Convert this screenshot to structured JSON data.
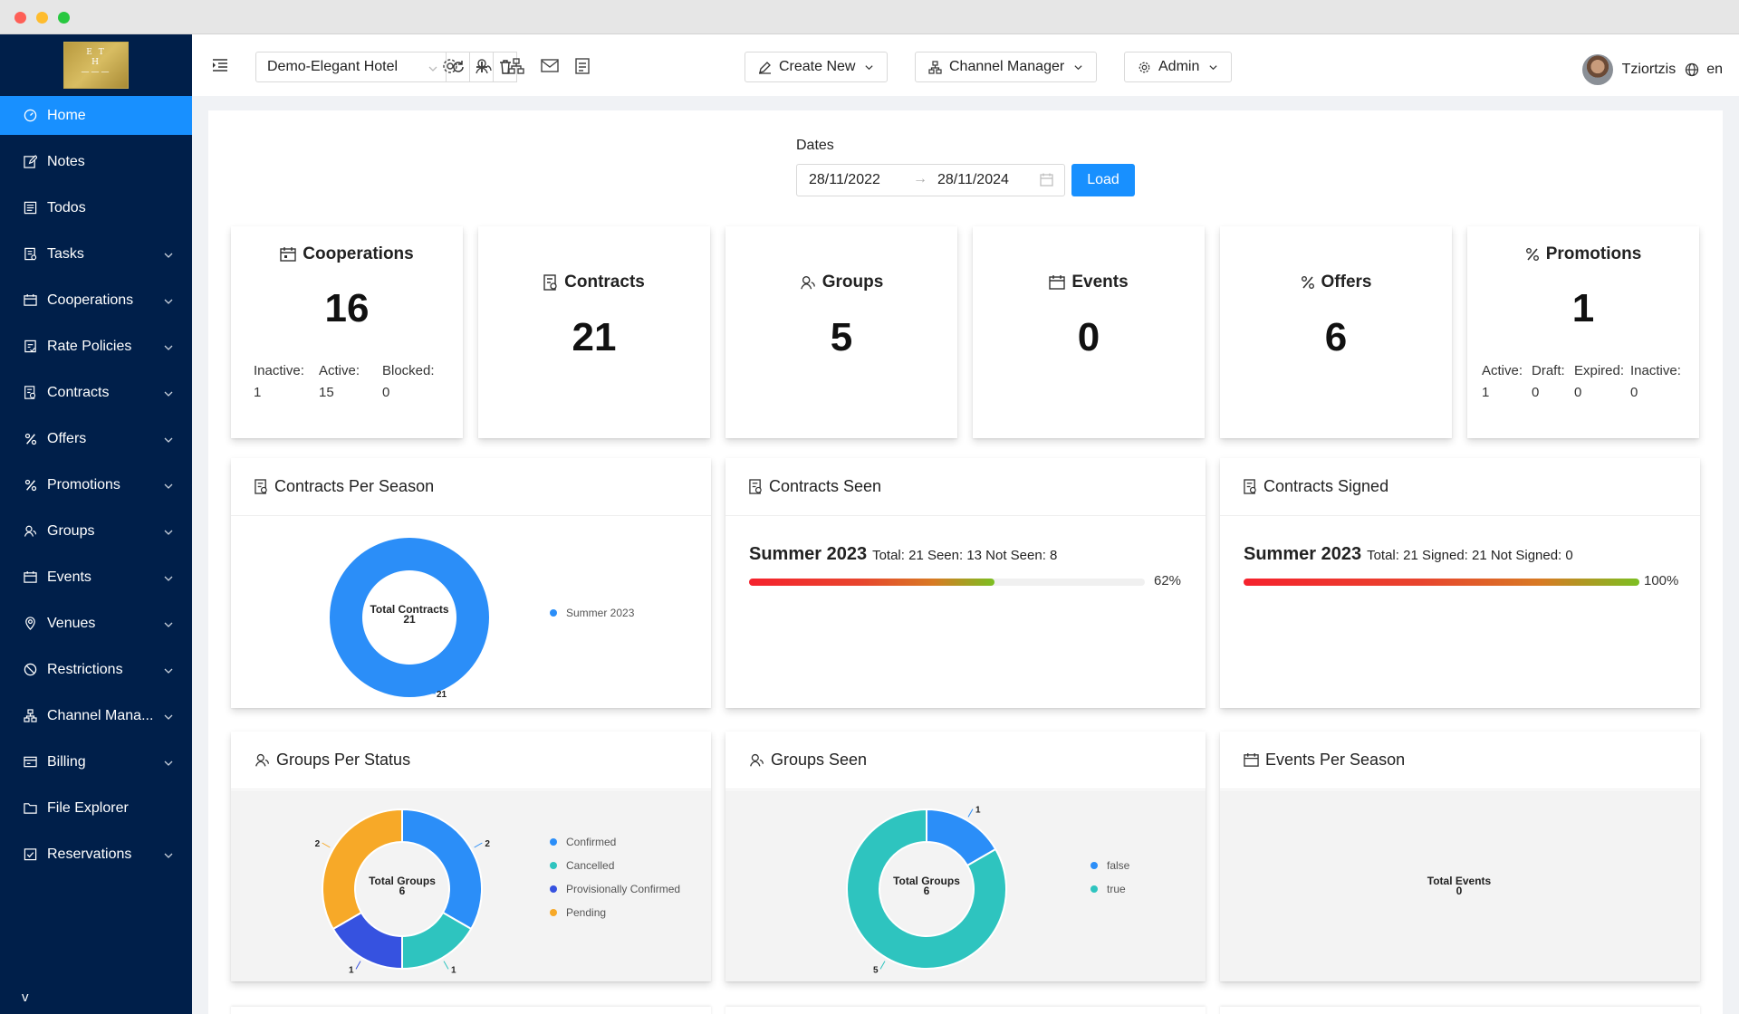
{
  "window": {
    "controls": [
      "close",
      "minimize",
      "maximize"
    ]
  },
  "sidebar": {
    "logo_text": "E T H",
    "items": [
      {
        "label": "Home",
        "icon": "dashboard-icon",
        "active": true,
        "has_children": false
      },
      {
        "label": "Notes",
        "icon": "edit-icon",
        "active": false,
        "has_children": false
      },
      {
        "label": "Todos",
        "icon": "list-icon",
        "active": false,
        "has_children": false
      },
      {
        "label": "Tasks",
        "icon": "task-icon",
        "active": false,
        "has_children": true
      },
      {
        "label": "Cooperations",
        "icon": "calendar-icon",
        "active": false,
        "has_children": true
      },
      {
        "label": "Rate Policies",
        "icon": "rate-icon",
        "active": false,
        "has_children": true
      },
      {
        "label": "Contracts",
        "icon": "contract-icon",
        "active": false,
        "has_children": true
      },
      {
        "label": "Offers",
        "icon": "percent-icon",
        "active": false,
        "has_children": true
      },
      {
        "label": "Promotions",
        "icon": "percent-icon",
        "active": false,
        "has_children": true
      },
      {
        "label": "Groups",
        "icon": "group-icon",
        "active": false,
        "has_children": true
      },
      {
        "label": "Events",
        "icon": "calendar-icon",
        "active": false,
        "has_children": true
      },
      {
        "label": "Venues",
        "icon": "location-icon",
        "active": false,
        "has_children": true
      },
      {
        "label": "Restrictions",
        "icon": "stop-icon",
        "active": false,
        "has_children": true
      },
      {
        "label": "Channel Mana...",
        "icon": "cluster-icon",
        "active": false,
        "has_children": true
      },
      {
        "label": "Billing",
        "icon": "billing-icon",
        "active": false,
        "has_children": true
      },
      {
        "label": "File Explorer",
        "icon": "folder-icon",
        "active": false,
        "has_children": false
      },
      {
        "label": "Reservations",
        "icon": "reservation-icon",
        "active": false,
        "has_children": true
      }
    ],
    "collapse_label": "v"
  },
  "header": {
    "hotel": "Demo-Elegant Hotel",
    "create_new": "Create New",
    "channel_manager": "Channel Manager",
    "admin": "Admin",
    "user_name": "Tziortzis",
    "language": "en"
  },
  "filters": {
    "dates_label": "Dates",
    "start_date": "28/11/2022",
    "end_date": "28/11/2024",
    "load_label": "Load"
  },
  "stats": {
    "cooperations": {
      "title": "Cooperations",
      "value": "16",
      "sub": [
        {
          "label": "Inactive:",
          "value": "1"
        },
        {
          "label": "Active:",
          "value": "15"
        },
        {
          "label": "Blocked:",
          "value": "0"
        }
      ]
    },
    "contracts": {
      "title": "Contracts",
      "value": "21"
    },
    "groups": {
      "title": "Groups",
      "value": "5"
    },
    "events": {
      "title": "Events",
      "value": "0"
    },
    "offers": {
      "title": "Offers",
      "value": "6"
    },
    "promotions": {
      "title": "Promotions",
      "value": "1",
      "sub": [
        {
          "label": "Active:",
          "value": "1"
        },
        {
          "label": "Draft:",
          "value": "0"
        },
        {
          "label": "Expired:",
          "value": "0"
        },
        {
          "label": "Inactive:",
          "value": "0"
        }
      ]
    }
  },
  "panels": {
    "contracts_per_season": {
      "title": "Contracts Per Season",
      "center_label": "Total Contracts",
      "center_value": "21"
    },
    "contracts_seen": {
      "title": "Contracts Seen",
      "season": "Summer 2023",
      "summary": "Total: 21 Seen: 13 Not Seen: 8",
      "percent_label": "62%"
    },
    "contracts_signed": {
      "title": "Contracts Signed",
      "season": "Summer 2023",
      "summary": "Total: 21 Signed: 21 Not Signed: 0",
      "percent_label": "100%"
    },
    "groups_per_status": {
      "title": "Groups Per Status",
      "center_label": "Total Groups",
      "center_value": "6"
    },
    "groups_seen": {
      "title": "Groups Seen",
      "center_label": "Total Groups",
      "center_value": "6"
    },
    "events_per_season": {
      "title": "Events Per Season",
      "center_label": "Total Events",
      "center_value": "0"
    }
  },
  "chart_data": [
    {
      "type": "pie",
      "id": "contracts-per-season",
      "categories": [
        "Summer 2023"
      ],
      "values": [
        21
      ],
      "colors": [
        "#2b8ef8"
      ],
      "legend": "right"
    },
    {
      "type": "bar",
      "id": "contracts-seen",
      "categories": [
        "Summer 2023"
      ],
      "values": [
        0.62
      ],
      "total": 21,
      "seen": 13,
      "not_seen": 8
    },
    {
      "type": "bar",
      "id": "contracts-signed",
      "categories": [
        "Summer 2023"
      ],
      "values": [
        1.0
      ],
      "total": 21,
      "signed": 21,
      "not_signed": 0
    },
    {
      "type": "pie",
      "id": "groups-per-status",
      "categories": [
        "Confirmed",
        "Cancelled",
        "Provisionally Confirmed",
        "Pending"
      ],
      "values": [
        2,
        1,
        1,
        2
      ],
      "colors": [
        "#2b8ef8",
        "#2ec4bf",
        "#3652e0",
        "#f7a928"
      ],
      "legend": "right"
    },
    {
      "type": "pie",
      "id": "groups-seen",
      "categories": [
        "false",
        "true"
      ],
      "values": [
        1,
        5
      ],
      "colors": [
        "#2b8ef8",
        "#2ec4bf"
      ],
      "legend": "right"
    },
    {
      "type": "pie",
      "id": "events-per-season",
      "categories": [],
      "values": []
    }
  ],
  "colors": {
    "accent": "#1890ff",
    "sidebar_bg": "#001f4a"
  }
}
